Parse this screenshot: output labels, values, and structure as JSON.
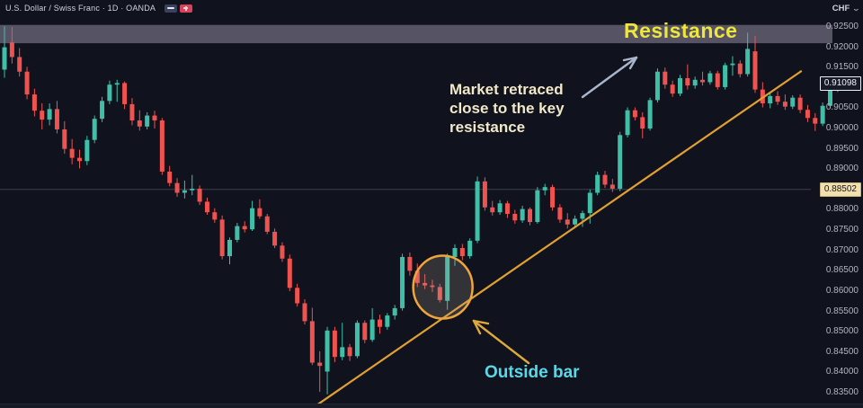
{
  "header": {
    "symbol_title": "U.S. Dollar / Swiss Franc · 1D · OANDA",
    "flag_icons": [
      "us-flag-icon",
      "swiss-flag-icon"
    ],
    "currency_label": "CHF"
  },
  "price_scale": {
    "ticks": [
      "0.92500",
      "0.92000",
      "0.91500",
      "0.91000",
      "0.90500",
      "0.90000",
      "0.89500",
      "0.89000",
      "0.88000",
      "0.87500",
      "0.87000",
      "0.86500",
      "0.86000",
      "0.85500",
      "0.85000",
      "0.84500",
      "0.84000",
      "0.83500"
    ],
    "last_price_label": "0.91098",
    "last_price": 0.91098,
    "level_label": "0.88502",
    "level_price": 0.88502
  },
  "annotations": {
    "resistance_label": "Resistance",
    "retrace_note": "Market retraced close to the key resistance",
    "outside_bar_label": "Outside bar",
    "colors": {
      "resistance_text": "#eee63c",
      "note_text": "#f0e8c8",
      "outside_text": "#5ad8e8",
      "arrow_blue": "#aab6cd",
      "arrow_orange": "#deaa3c",
      "circle_stroke": "#f0a53c"
    }
  },
  "chart_data": {
    "type": "candlestick",
    "symbol": "USD/CHF",
    "timeframe": "1D",
    "source": "OANDA",
    "up_color": "#3fbfa8",
    "down_color": "#ef5350",
    "y_axis": {
      "min": 0.8313,
      "max": 0.9255,
      "tick_step": 0.005
    },
    "resistance_zone": {
      "from_price": 0.921,
      "to_price": 0.9255,
      "fill": "rgba(200,190,215,0.38)"
    },
    "horizontal_level": 0.88502,
    "trendline": {
      "start_index": 41.1,
      "start_price": 0.8313,
      "end_index": 106.2,
      "end_price": 0.9142,
      "color": "#e2a033"
    },
    "outside_bar_index": 59,
    "candles": [
      [
        0.9145,
        0.9252,
        0.9125,
        0.92
      ],
      [
        0.9212,
        0.925,
        0.916,
        0.9176
      ],
      [
        0.9176,
        0.9198,
        0.9128,
        0.914
      ],
      [
        0.914,
        0.9152,
        0.9072,
        0.9084
      ],
      [
        0.9084,
        0.9098,
        0.903,
        0.9044
      ],
      [
        0.9044,
        0.9062,
        0.8998,
        0.9022
      ],
      [
        0.9022,
        0.9062,
        0.9008,
        0.9048
      ],
      [
        0.9048,
        0.9068,
        0.8988,
        0.8998
      ],
      [
        0.8998,
        0.9018,
        0.8938,
        0.895
      ],
      [
        0.895,
        0.8974,
        0.8912,
        0.8928
      ],
      [
        0.8928,
        0.8948,
        0.8902,
        0.892
      ],
      [
        0.892,
        0.8982,
        0.891,
        0.8972
      ],
      [
        0.8972,
        0.9032,
        0.8964,
        0.9024
      ],
      [
        0.9024,
        0.9078,
        0.9016,
        0.9068
      ],
      [
        0.9068,
        0.9118,
        0.906,
        0.9108
      ],
      [
        0.9108,
        0.912,
        0.9066,
        0.9112
      ],
      [
        0.9112,
        0.9116,
        0.9048,
        0.906
      ],
      [
        0.906,
        0.9075,
        0.9008,
        0.902
      ],
      [
        0.902,
        0.9045,
        0.8995,
        0.9005
      ],
      [
        0.9005,
        0.904,
        0.8998,
        0.9032
      ],
      [
        0.9032,
        0.9044,
        0.9,
        0.902
      ],
      [
        0.902,
        0.9026,
        0.8886,
        0.8894
      ],
      [
        0.8894,
        0.8908,
        0.8858,
        0.8866
      ],
      [
        0.8866,
        0.8878,
        0.8832,
        0.8842
      ],
      [
        0.8842,
        0.8872,
        0.8828,
        0.8848
      ],
      [
        0.8848,
        0.8886,
        0.8836,
        0.8852
      ],
      [
        0.8852,
        0.886,
        0.8812,
        0.882
      ],
      [
        0.882,
        0.883,
        0.8788,
        0.8794
      ],
      [
        0.8794,
        0.8804,
        0.8768,
        0.8776
      ],
      [
        0.8776,
        0.8786,
        0.8678,
        0.8686
      ],
      [
        0.8686,
        0.8732,
        0.8666,
        0.8726
      ],
      [
        0.8726,
        0.8768,
        0.872,
        0.876
      ],
      [
        0.876,
        0.8772,
        0.8744,
        0.8752
      ],
      [
        0.8752,
        0.8822,
        0.8748,
        0.8804
      ],
      [
        0.8804,
        0.8826,
        0.8778,
        0.8784
      ],
      [
        0.8784,
        0.879,
        0.874,
        0.8746
      ],
      [
        0.8746,
        0.8754,
        0.8706,
        0.8712
      ],
      [
        0.8712,
        0.872,
        0.8672,
        0.868
      ],
      [
        0.868,
        0.869,
        0.86,
        0.8608
      ],
      [
        0.8608,
        0.8618,
        0.8562,
        0.857
      ],
      [
        0.857,
        0.858,
        0.8518,
        0.8526
      ],
      [
        0.8526,
        0.8559,
        0.8418,
        0.8424
      ],
      [
        0.8424,
        0.8452,
        0.8352,
        0.8416
      ],
      [
        0.8402,
        0.8512,
        0.8346,
        0.8503
      ],
      [
        0.8503,
        0.8512,
        0.8425,
        0.8438
      ],
      [
        0.8438,
        0.8522,
        0.843,
        0.8462
      ],
      [
        0.8462,
        0.847,
        0.8428,
        0.844
      ],
      [
        0.844,
        0.8528,
        0.8435,
        0.8522
      ],
      [
        0.8522,
        0.8528,
        0.8472,
        0.848
      ],
      [
        0.848,
        0.8558,
        0.8475,
        0.853
      ],
      [
        0.853,
        0.8542,
        0.8495,
        0.8512
      ],
      [
        0.8512,
        0.8546,
        0.8505,
        0.854
      ],
      [
        0.854,
        0.8566,
        0.853,
        0.8558
      ],
      [
        0.8558,
        0.8692,
        0.8552,
        0.8684
      ],
      [
        0.8684,
        0.8695,
        0.8638,
        0.865
      ],
      [
        0.865,
        0.8668,
        0.861,
        0.862
      ],
      [
        0.862,
        0.8642,
        0.8605,
        0.8614
      ],
      [
        0.8614,
        0.8628,
        0.8598,
        0.861
      ],
      [
        0.861,
        0.8618,
        0.8572,
        0.8578
      ],
      [
        0.8576,
        0.8692,
        0.8554,
        0.8684
      ],
      [
        0.8684,
        0.8715,
        0.8662,
        0.8706
      ],
      [
        0.8706,
        0.8716,
        0.8676,
        0.8686
      ],
      [
        0.8686,
        0.873,
        0.868,
        0.8724
      ],
      [
        0.8724,
        0.8882,
        0.8718,
        0.887
      ],
      [
        0.887,
        0.888,
        0.8798,
        0.8806
      ],
      [
        0.8806,
        0.8822,
        0.8786,
        0.8794
      ],
      [
        0.8794,
        0.8824,
        0.8788,
        0.8816
      ],
      [
        0.8816,
        0.8822,
        0.878,
        0.879
      ],
      [
        0.879,
        0.88,
        0.8766,
        0.8774
      ],
      [
        0.8774,
        0.881,
        0.8768,
        0.8802
      ],
      [
        0.8802,
        0.8806,
        0.8762,
        0.877
      ],
      [
        0.877,
        0.8856,
        0.8766,
        0.8848
      ],
      [
        0.8848,
        0.8864,
        0.8836,
        0.8856
      ],
      [
        0.8856,
        0.8862,
        0.8798,
        0.8806
      ],
      [
        0.8806,
        0.8814,
        0.8768,
        0.8776
      ],
      [
        0.8776,
        0.8792,
        0.8754,
        0.8764
      ],
      [
        0.8764,
        0.8786,
        0.8756,
        0.8778
      ],
      [
        0.8778,
        0.8798,
        0.8758,
        0.8792
      ],
      [
        0.8792,
        0.885,
        0.8766,
        0.8842
      ],
      [
        0.8842,
        0.8894,
        0.8836,
        0.8886
      ],
      [
        0.8886,
        0.8896,
        0.8854,
        0.8862
      ],
      [
        0.8862,
        0.8876,
        0.8844,
        0.8852
      ],
      [
        0.8852,
        0.8992,
        0.8846,
        0.8984
      ],
      [
        0.8984,
        0.9052,
        0.8978,
        0.9045
      ],
      [
        0.9045,
        0.9052,
        0.902,
        0.9028
      ],
      [
        0.9028,
        0.904,
        0.8976,
        0.9
      ],
      [
        0.9,
        0.9076,
        0.8995,
        0.907
      ],
      [
        0.907,
        0.9148,
        0.9064,
        0.914
      ],
      [
        0.914,
        0.915,
        0.9098,
        0.9108
      ],
      [
        0.9108,
        0.9118,
        0.9078,
        0.9086
      ],
      [
        0.9086,
        0.9132,
        0.908,
        0.9124
      ],
      [
        0.9124,
        0.9158,
        0.9096,
        0.9106
      ],
      [
        0.9106,
        0.9128,
        0.9098,
        0.912
      ],
      [
        0.912,
        0.914,
        0.9106,
        0.9114
      ],
      [
        0.9114,
        0.9142,
        0.9108,
        0.9136
      ],
      [
        0.9136,
        0.9142,
        0.9096,
        0.9102
      ],
      [
        0.9102,
        0.9162,
        0.9096,
        0.9156
      ],
      [
        0.9156,
        0.9178,
        0.913,
        0.916
      ],
      [
        0.916,
        0.9168,
        0.9126,
        0.9134
      ],
      [
        0.9134,
        0.9236,
        0.9128,
        0.9196
      ],
      [
        0.919,
        0.9228,
        0.9088,
        0.9096
      ],
      [
        0.9096,
        0.9114,
        0.9052,
        0.9062
      ],
      [
        0.9062,
        0.9088,
        0.905,
        0.908
      ],
      [
        0.908,
        0.9092,
        0.9058,
        0.9066
      ],
      [
        0.9066,
        0.9084,
        0.9046,
        0.9054
      ],
      [
        0.9054,
        0.9082,
        0.9048,
        0.9076
      ],
      [
        0.9076,
        0.9084,
        0.9038,
        0.9046
      ],
      [
        0.9046,
        0.9058,
        0.9016,
        0.9026
      ],
      [
        0.9026,
        0.9038,
        0.8994,
        0.9012
      ],
      [
        0.9012,
        0.9064,
        0.9006,
        0.9056
      ],
      [
        0.9056,
        0.911,
        0.905,
        0.9104
      ],
      [
        0.9104,
        0.9118,
        0.909,
        0.911
      ]
    ]
  }
}
